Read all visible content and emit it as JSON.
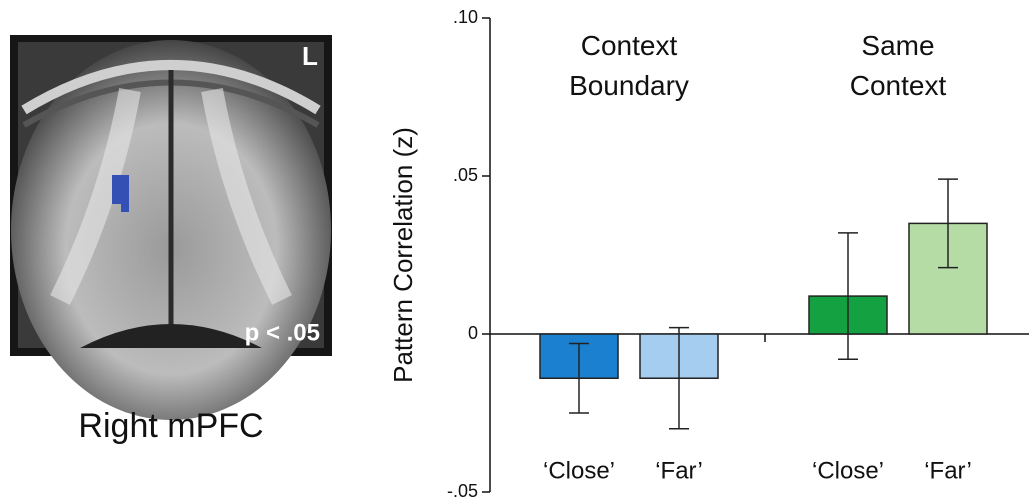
{
  "image_labels": {
    "corner": "L",
    "threshold": "p < .05",
    "caption": "Right mPFC"
  },
  "chart_data": {
    "type": "bar",
    "y_label": "Pattern Correlation (z)",
    "ylim": [
      -0.05,
      0.1
    ],
    "yticks": [
      {
        "value": -0.05,
        "label": "-.05"
      },
      0,
      {
        "value": 0.05,
        "label": ".05"
      },
      {
        "value": 0.1,
        "label": ".10"
      }
    ],
    "groups": [
      {
        "name": "Context Boundary",
        "categories": [
          "‘Close’",
          "‘Far’"
        ],
        "values": [
          -0.014,
          -0.014
        ],
        "errors": [
          0.011,
          0.016
        ],
        "colors": [
          "#1b80cf",
          "#a4cdef"
        ]
      },
      {
        "name": "Same Context",
        "categories": [
          "‘Close’",
          "‘Far’"
        ],
        "values": [
          0.012,
          0.035
        ],
        "errors": [
          0.02,
          0.014
        ],
        "colors": [
          "#13a142",
          "#b6dca6"
        ]
      }
    ]
  }
}
